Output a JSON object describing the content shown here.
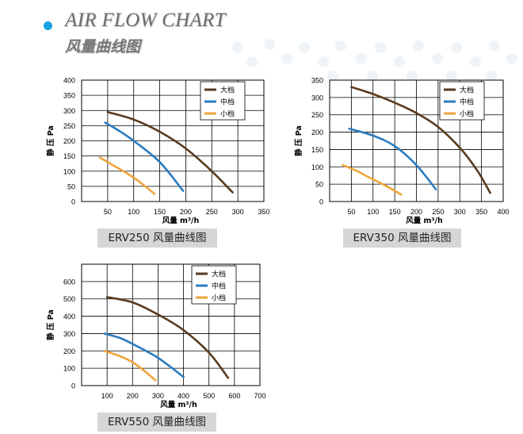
{
  "header": {
    "title_en": "AIR FLOW CHART",
    "title_cn": "风量曲线图"
  },
  "colors": {
    "high": "#5a3a1e",
    "mid": "#2b7bc0",
    "low": "#f0a43a",
    "accent_dot": "#1aa3e0",
    "caption_bg": "#d6d6d6"
  },
  "chart_data": [
    {
      "type": "line",
      "title": "ERV250 风量曲线图",
      "xlabel": "风量 m³/h",
      "ylabel": "静 压   Pa",
      "xlim": [
        0,
        350
      ],
      "ylim": [
        0,
        400
      ],
      "xticks": [
        50,
        100,
        150,
        200,
        250,
        300,
        350
      ],
      "xtick_labels": [
        "50",
        "100",
        "150",
        "200",
        "250",
        "300",
        "350"
      ],
      "yticks": [
        0,
        50,
        100,
        150,
        200,
        250,
        300,
        350,
        400
      ],
      "ytick_labels": [
        "0",
        "50",
        "100",
        "150",
        "200",
        "250",
        "300",
        "350",
        "400"
      ],
      "legend_position": "top-right",
      "series": [
        {
          "name": "大档",
          "color": "#5a3a1e",
          "x": [
            50,
            100,
            150,
            200,
            250,
            290
          ],
          "y": [
            295,
            270,
            230,
            175,
            100,
            30
          ]
        },
        {
          "name": "中档",
          "color": "#2b7bc0",
          "x": [
            45,
            70,
            100,
            150,
            195
          ],
          "y": [
            260,
            235,
            200,
            130,
            35
          ]
        },
        {
          "name": "小档",
          "color": "#f0a43a",
          "x": [
            35,
            60,
            90,
            115,
            140
          ],
          "y": [
            145,
            120,
            90,
            60,
            25
          ]
        }
      ]
    },
    {
      "type": "line",
      "title": "ERV350 风量曲线图",
      "xlabel": "风量 m³/h",
      "ylabel": "静 压   Pa",
      "xlim": [
        0,
        400
      ],
      "ylim": [
        0,
        350
      ],
      "xticks": [
        50,
        100,
        150,
        200,
        250,
        300,
        350,
        400
      ],
      "xtick_labels": [
        "50",
        "100",
        "150",
        "200",
        "250",
        "300",
        "350",
        "400"
      ],
      "yticks": [
        0,
        50,
        100,
        150,
        200,
        250,
        300,
        350
      ],
      "ytick_labels": [
        "0",
        "50",
        "100",
        "150",
        "200",
        "250",
        "300",
        "350"
      ],
      "legend_position": "top-right",
      "series": [
        {
          "name": "大档",
          "color": "#5a3a1e",
          "x": [
            50,
            100,
            150,
            200,
            250,
            300,
            340,
            370
          ],
          "y": [
            330,
            310,
            285,
            255,
            215,
            155,
            90,
            25
          ]
        },
        {
          "name": "中档",
          "color": "#2b7bc0",
          "x": [
            45,
            100,
            150,
            200,
            245
          ],
          "y": [
            210,
            190,
            160,
            105,
            35
          ]
        },
        {
          "name": "小档",
          "color": "#f0a43a",
          "x": [
            30,
            60,
            90,
            130,
            165
          ],
          "y": [
            105,
            90,
            70,
            45,
            20
          ]
        }
      ]
    },
    {
      "type": "line",
      "title": "ERV550 风量曲线图",
      "xlabel": "风量 m³/h",
      "ylabel": "静 压   Pa",
      "xlim": [
        0,
        700
      ],
      "ylim": [
        0,
        700
      ],
      "xticks": [
        100,
        200,
        300,
        400,
        500,
        600,
        700
      ],
      "xtick_labels": [
        "100",
        "200",
        "300",
        "400",
        "500",
        "600",
        "700"
      ],
      "yticks": [
        0,
        100,
        200,
        300,
        400,
        500,
        600
      ],
      "ytick_labels": [
        "0",
        "100",
        "200",
        "300",
        "400",
        "500",
        "600"
      ],
      "legend_position": "top-right",
      "series": [
        {
          "name": "大档",
          "color": "#5a3a1e",
          "x": [
            100,
            200,
            300,
            400,
            500,
            575
          ],
          "y": [
            510,
            480,
            410,
            320,
            190,
            45
          ]
        },
        {
          "name": "中档",
          "color": "#2b7bc0",
          "x": [
            90,
            150,
            200,
            300,
            400
          ],
          "y": [
            300,
            275,
            240,
            160,
            50
          ]
        },
        {
          "name": "小档",
          "color": "#f0a43a",
          "x": [
            90,
            150,
            200,
            250,
            290
          ],
          "y": [
            200,
            170,
            135,
            80,
            30
          ]
        }
      ]
    }
  ]
}
